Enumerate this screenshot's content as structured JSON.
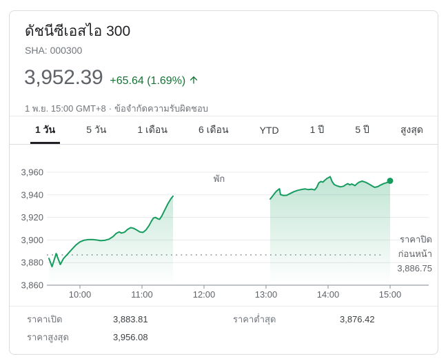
{
  "colors": {
    "positive": "#137333",
    "line": "#169c5f",
    "grid": "#e8eaed",
    "axis": "#9aa0a6",
    "dotted": "#9aa0a6",
    "active_tab_underline": "#202124"
  },
  "header": {
    "title": "ดัชนีซีเอสไอ 300",
    "symbol": "SHA: 000300",
    "price": "3,952.39",
    "change": "+65.64 (1.69%)",
    "change_direction": "up",
    "timestamp": "1 พ.ย. 15:00 GMT+8",
    "separator": "·",
    "disclaimer": "ข้อจำกัดความรับผิดชอบ"
  },
  "tabs": [
    {
      "id": "tab-1-day",
      "label": "1 วัน",
      "active": true
    },
    {
      "id": "tab-5-days",
      "label": "5 วัน",
      "active": false
    },
    {
      "id": "tab-1-month",
      "label": "1 เดือน",
      "active": false
    },
    {
      "id": "tab-6-months",
      "label": "6 เดือน",
      "active": false
    },
    {
      "id": "tab-ytd",
      "label": "YTD",
      "active": false
    },
    {
      "id": "tab-1-year",
      "label": "1 ปี",
      "active": false
    },
    {
      "id": "tab-5-years",
      "label": "5 ปี",
      "active": false
    },
    {
      "id": "tab-max",
      "label": "สูงสุด",
      "active": false
    }
  ],
  "chart_data": {
    "type": "area",
    "title": "",
    "xlabel": "",
    "ylabel": "",
    "ylim": [
      3860,
      3960
    ],
    "grid": true,
    "y_ticks": [
      {
        "value": 3860,
        "label": "3,860"
      },
      {
        "value": 3880,
        "label": "3,880"
      },
      {
        "value": 3900,
        "label": "3,900"
      },
      {
        "value": 3920,
        "label": "3,920"
      },
      {
        "value": 3940,
        "label": "3,940"
      },
      {
        "value": 3960,
        "label": "3,960"
      }
    ],
    "x_ticks": [
      {
        "minute": 600,
        "label": "10:00"
      },
      {
        "minute": 660,
        "label": "11:00"
      },
      {
        "minute": 720,
        "label": "12:00"
      },
      {
        "minute": 780,
        "label": "13:00"
      },
      {
        "minute": 840,
        "label": "14:00"
      },
      {
        "minute": 900,
        "label": "15:00"
      }
    ],
    "session_break_label": "พัก",
    "prev_close": {
      "label_line1": "ราคาปิด",
      "label_line2": "ก่อนหน้า",
      "value": 3886.75,
      "value_label": "3,886.75"
    },
    "last_point_marker": true,
    "series": [
      {
        "name": "morning-session",
        "points": [
          [
            570,
            3883.7
          ],
          [
            573,
            3876.4
          ],
          [
            577,
            3888.0
          ],
          [
            581,
            3878.3
          ],
          [
            584,
            3883.5
          ],
          [
            588,
            3887.5
          ],
          [
            592,
            3891.5
          ],
          [
            596,
            3895.5
          ],
          [
            600,
            3898.3
          ],
          [
            604,
            3899.8
          ],
          [
            608,
            3900.3
          ],
          [
            612,
            3900.4
          ],
          [
            616,
            3900.0
          ],
          [
            620,
            3899.4
          ],
          [
            624,
            3899.7
          ],
          [
            628,
            3900.7
          ],
          [
            632,
            3903.0
          ],
          [
            635,
            3905.8
          ],
          [
            638,
            3907.2
          ],
          [
            640,
            3906.1
          ],
          [
            643,
            3906.8
          ],
          [
            646,
            3909.3
          ],
          [
            649,
            3910.9
          ],
          [
            652,
            3910.3
          ],
          [
            655,
            3908.8
          ],
          [
            658,
            3907.1
          ],
          [
            661,
            3906.7
          ],
          [
            664,
            3909.0
          ],
          [
            667,
            3913.0
          ],
          [
            669,
            3916.5
          ],
          [
            671,
            3919.3
          ],
          [
            673,
            3920.0
          ],
          [
            675,
            3918.9
          ],
          [
            677,
            3918.3
          ],
          [
            679,
            3921.0
          ],
          [
            682,
            3926.5
          ],
          [
            685,
            3932.0
          ],
          [
            688,
            3936.5
          ],
          [
            690,
            3938.8
          ]
        ]
      },
      {
        "name": "afternoon-session",
        "points": [
          [
            784,
            3936.2
          ],
          [
            786,
            3938.5
          ],
          [
            788,
            3941.0
          ],
          [
            790,
            3943.2
          ],
          [
            793,
            3945.3
          ],
          [
            794,
            3940.2
          ],
          [
            797,
            3939.4
          ],
          [
            800,
            3939.6
          ],
          [
            803,
            3941.0
          ],
          [
            807,
            3942.8
          ],
          [
            811,
            3944.0
          ],
          [
            815,
            3944.8
          ],
          [
            818,
            3945.2
          ],
          [
            821,
            3944.6
          ],
          [
            824,
            3945.0
          ],
          [
            827,
            3944.3
          ],
          [
            829,
            3946.5
          ],
          [
            831,
            3950.5
          ],
          [
            833,
            3951.8
          ],
          [
            835,
            3951.2
          ],
          [
            837,
            3953.0
          ],
          [
            839,
            3954.5
          ],
          [
            841,
            3955.5
          ],
          [
            842,
            3956.1
          ],
          [
            844,
            3951.5
          ],
          [
            846,
            3949.0
          ],
          [
            849,
            3947.8
          ],
          [
            852,
            3947.0
          ],
          [
            855,
            3947.6
          ],
          [
            857,
            3948.9
          ],
          [
            859,
            3949.9
          ],
          [
            861,
            3948.8
          ],
          [
            863,
            3949.6
          ],
          [
            866,
            3948.1
          ],
          [
            868,
            3949.8
          ],
          [
            870,
            3951.2
          ],
          [
            873,
            3952.1
          ],
          [
            876,
            3951.2
          ],
          [
            879,
            3949.8
          ],
          [
            882,
            3948.2
          ],
          [
            885,
            3946.6
          ],
          [
            888,
            3947.2
          ],
          [
            891,
            3948.8
          ],
          [
            894,
            3950.0
          ],
          [
            897,
            3950.8
          ],
          [
            900,
            3952.4
          ]
        ]
      }
    ]
  },
  "stats": {
    "rows": [
      {
        "cells": [
          {
            "label": "ราคาเปิด",
            "value": "3,883.81"
          },
          {
            "label": "ราคาต่ำสุด",
            "value": "3,876.42"
          }
        ]
      },
      {
        "cells": [
          {
            "label": "ราคาสูงสุด",
            "value": "3,956.08"
          }
        ]
      }
    ]
  }
}
